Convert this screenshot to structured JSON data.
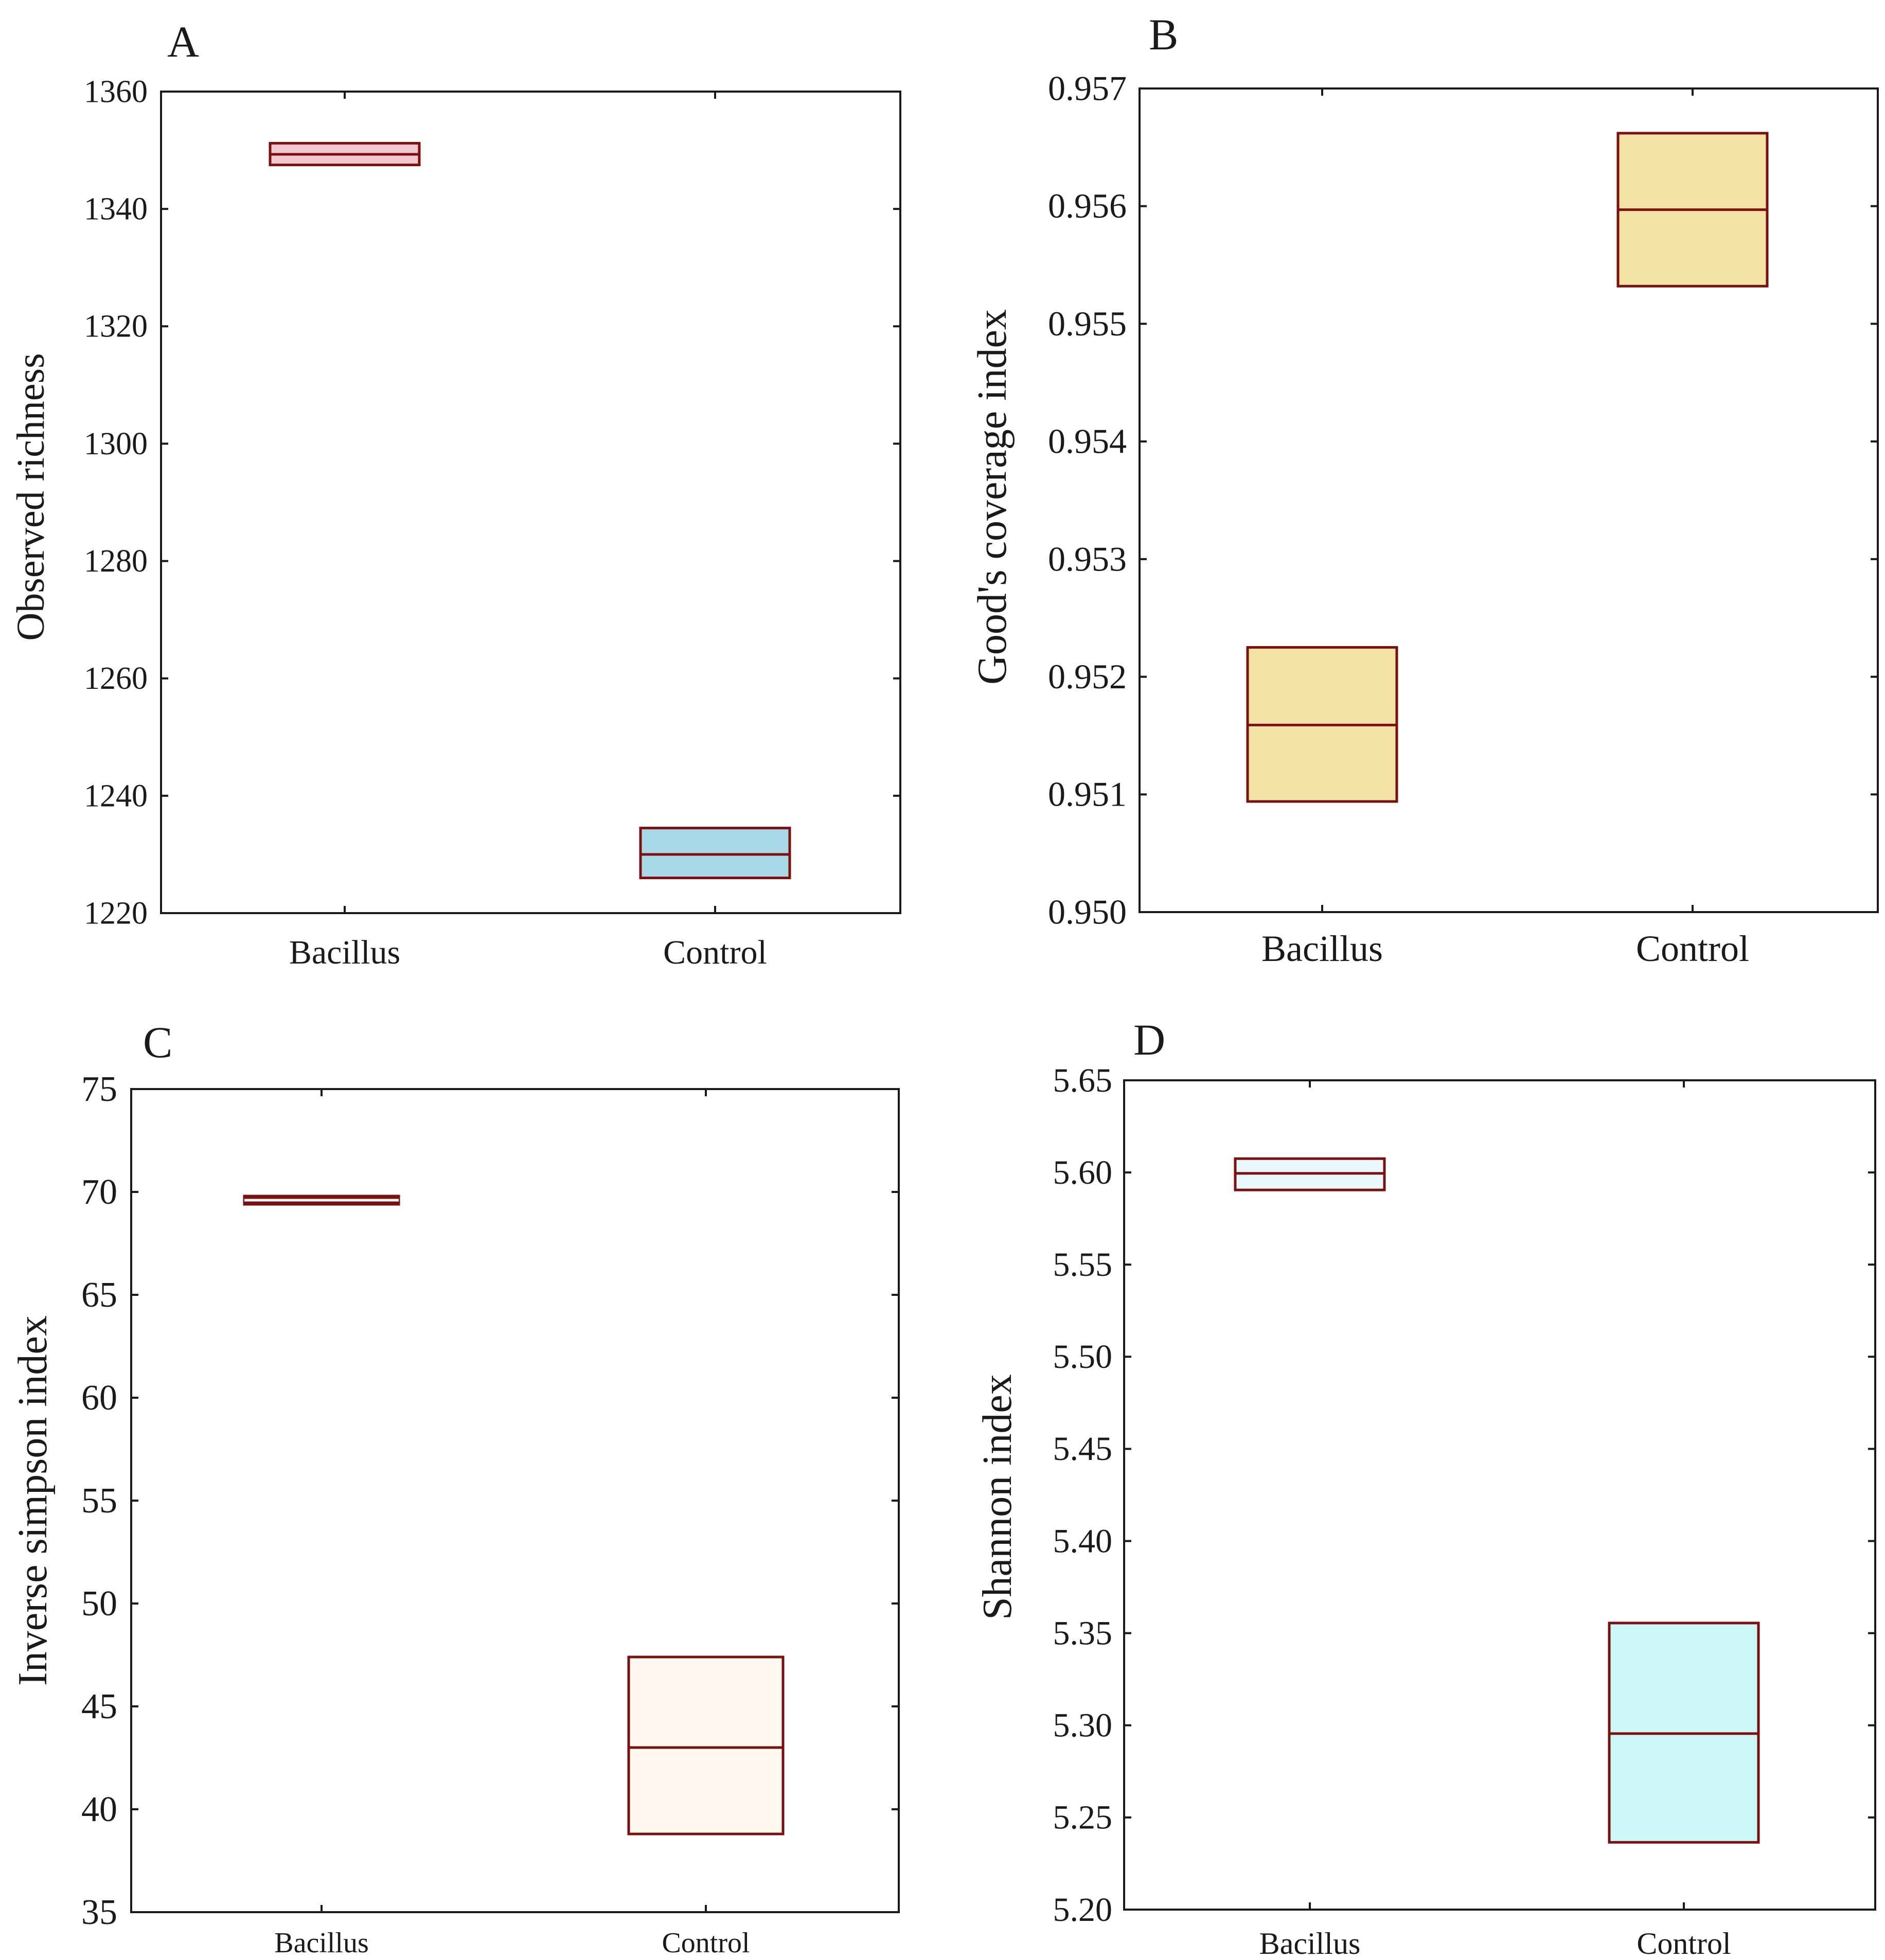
{
  "colors": {
    "frame": "#1a1a1a",
    "box_border": "#7a1010",
    "pink_fill": "#f2c8d0",
    "blue_fill": "#a8d8e8",
    "yellow_fill": "#f2e2a6",
    "cream_fill": "#fff8ee",
    "lightcyan_fill": "#ccf8fa",
    "paleblue_fill": "#e8f8fa",
    "median_line": "#ffffff",
    "thin_box_fill": "#7a1010"
  },
  "chart_data": [
    {
      "panel": "A",
      "type": "box",
      "ylabel": "Observed richness",
      "ylim": [
        1220,
        1360
      ],
      "yticks": [
        1220,
        1240,
        1260,
        1280,
        1300,
        1320,
        1340,
        1360
      ],
      "ytick_labels": [
        "1220",
        "1240",
        "1260",
        "1280",
        "1300",
        "1320",
        "1340",
        "1360"
      ],
      "categories": [
        "Bacillus",
        "Control"
      ],
      "boxes": [
        {
          "category": "Bacillus",
          "low": 1347.5,
          "median": 1349.3,
          "high": 1351.2,
          "fill": "pink_fill",
          "median_color": "box_border"
        },
        {
          "category": "Control",
          "low": 1226,
          "median": 1230,
          "high": 1234.5,
          "fill": "blue_fill",
          "median_color": "box_border"
        }
      ]
    },
    {
      "panel": "B",
      "type": "box",
      "ylabel": "Good's coverage index",
      "ylim": [
        0.95,
        0.957
      ],
      "yticks": [
        0.95,
        0.951,
        0.952,
        0.953,
        0.954,
        0.955,
        0.956,
        0.957
      ],
      "ytick_labels": [
        "0.950",
        "0.951",
        "0.952",
        "0.953",
        "0.954",
        "0.955",
        "0.956",
        "0.957"
      ],
      "categories": [
        "Bacillus",
        "Control"
      ],
      "boxes": [
        {
          "category": "Bacillus",
          "low": 0.95094,
          "median": 0.95159,
          "high": 0.95225,
          "fill": "yellow_fill",
          "median_color": "box_border"
        },
        {
          "category": "Control",
          "low": 0.95532,
          "median": 0.95597,
          "high": 0.95662,
          "fill": "yellow_fill",
          "median_color": "box_border"
        }
      ]
    },
    {
      "panel": "C",
      "type": "box",
      "ylabel": "Inverse simpson index",
      "ylim": [
        35,
        75
      ],
      "yticks": [
        35,
        40,
        45,
        50,
        55,
        60,
        65,
        70,
        75
      ],
      "ytick_labels": [
        "35",
        "40",
        "45",
        "50",
        "55",
        "60",
        "65",
        "70",
        "75"
      ],
      "categories": [
        "Bacillus",
        "Control"
      ],
      "boxes": [
        {
          "category": "Bacillus",
          "low": 69.4,
          "median": 69.6,
          "high": 69.8,
          "fill": "thin_box_fill",
          "median_color": "median_line"
        },
        {
          "category": "Control",
          "low": 38.8,
          "median": 43.0,
          "high": 47.4,
          "fill": "cream_fill",
          "median_color": "box_border"
        }
      ]
    },
    {
      "panel": "D",
      "type": "box",
      "ylabel": "Shannon index",
      "ylim": [
        5.2,
        5.65
      ],
      "yticks": [
        5.2,
        5.25,
        5.3,
        5.35,
        5.4,
        5.45,
        5.5,
        5.55,
        5.6,
        5.65
      ],
      "ytick_labels": [
        "5.20",
        "5.25",
        "5.30",
        "5.35",
        "5.40",
        "5.45",
        "5.50",
        "5.55",
        "5.60",
        "5.65"
      ],
      "categories": [
        "Bacillus",
        "Control"
      ],
      "boxes": [
        {
          "category": "Bacillus",
          "low": 5.5905,
          "median": 5.5995,
          "high": 5.6075,
          "fill": "paleblue_fill",
          "median_color": "box_border"
        },
        {
          "category": "Control",
          "low": 5.2365,
          "median": 5.2955,
          "high": 5.3555,
          "fill": "lightcyan_fill",
          "median_color": "box_border"
        }
      ]
    }
  ]
}
